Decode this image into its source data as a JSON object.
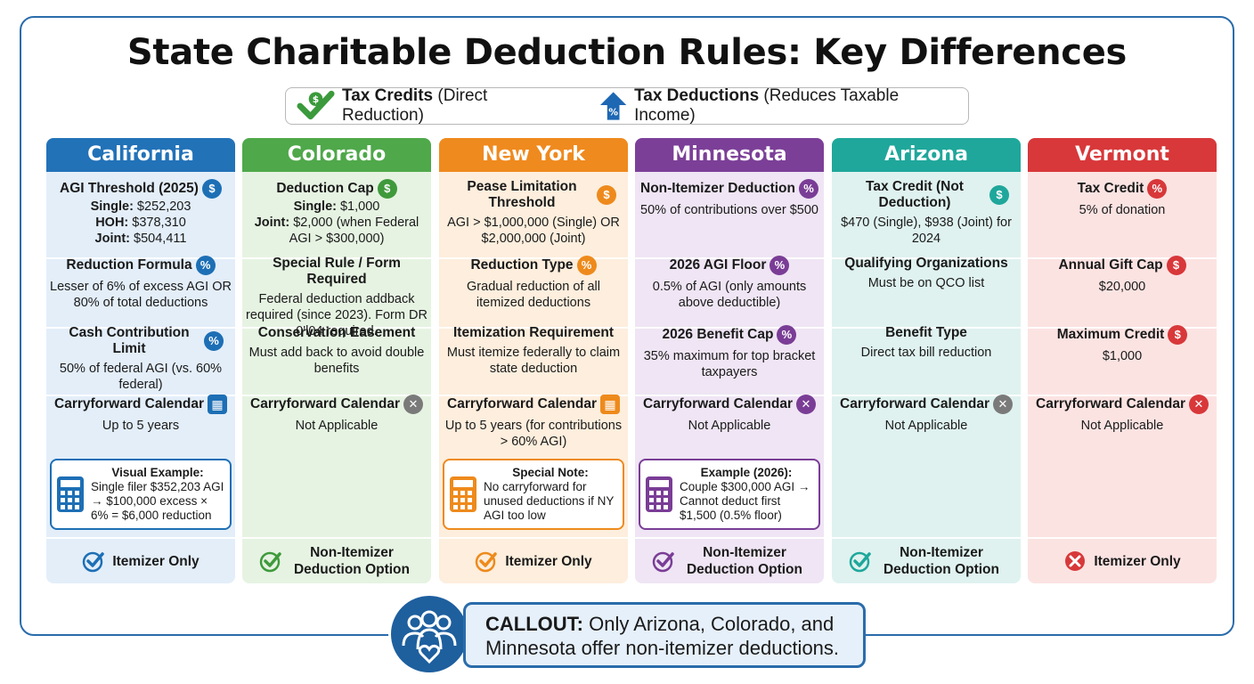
{
  "title": "State Charitable Deduction Rules: Key Differences",
  "legend": {
    "credits_bold": "Tax Credits",
    "credits_rest": "(Direct Reduction)",
    "deductions_bold": "Tax Deductions",
    "deductions_rest": "(Reduces Taxable Income)"
  },
  "columns": [
    {
      "state": "California",
      "header_color": "#2272b8",
      "bg": "#e3eef9",
      "accent": "#1d6fb5",
      "s1": {
        "head": "AGI Threshold (2025)",
        "icon": "$",
        "lines": [
          [
            "Single:",
            " $252,203"
          ],
          [
            "HOH:",
            " $378,310"
          ],
          [
            "Joint:",
            " $504,411"
          ]
        ]
      },
      "s2": {
        "head": "Reduction Formula",
        "icon": "%",
        "text": "Lesser of 6% of excess AGI OR 80% of total deductions"
      },
      "s3": {
        "head": "Cash Contribution Limit",
        "icon": "%",
        "text": "50% of federal AGI (vs. 60% federal)"
      },
      "s4": {
        "head": "Carryforward Calendar",
        "icon": "cal",
        "text": "Up to 5 years"
      },
      "note": {
        "head": "Visual Example:",
        "text": "Single filer $352,203 AGI → $100,000 excess × 6% = $6,000 reduction"
      },
      "bottom": {
        "icon": "check",
        "text": "Itemizer Only"
      }
    },
    {
      "state": "Colorado",
      "header_color": "#4fa84a",
      "bg": "#e6f3e2",
      "accent": "#3f9a3c",
      "s1": {
        "head": "Deduction Cap",
        "icon": "$",
        "lines": [
          [
            "Single:",
            " $1,000"
          ],
          [
            "Joint:",
            " $2,000 (when Federal AGI > $300,000)"
          ]
        ]
      },
      "s2": {
        "head": "Special Rule / Form Required",
        "icon": "",
        "text": "Federal deduction addback required (since 2023). Form DR 0'l04 required."
      },
      "s3": {
        "head": "Conservation Easement",
        "icon": "",
        "text": "Must add back to avoid double benefits"
      },
      "s4": {
        "head": "Carryforward Calendar",
        "icon": "x",
        "text": "Not Applicable"
      },
      "bottom": {
        "icon": "check",
        "text": "Non-Itemizer Deduction Option"
      }
    },
    {
      "state": "New York",
      "header_color": "#ef8a1e",
      "bg": "#fdeedd",
      "accent": "#ee8a1c",
      "s1": {
        "head": "Pease Limitation Threshold",
        "icon": "$",
        "text": "AGI > $1,000,000 (Single) OR $2,000,000 (Joint)"
      },
      "s2": {
        "head": "Reduction Type",
        "icon": "%",
        "text": "Gradual reduction of all itemized deductions"
      },
      "s3": {
        "head": "Itemization Requirement",
        "icon": "",
        "text": "Must itemize federally to claim state deduction"
      },
      "s4": {
        "head": "Carryforward Calendar",
        "icon": "cal",
        "text": "Up to 5 years (for contributions > 60% AGI)"
      },
      "note": {
        "head": "Special Note:",
        "text": "No carryforward for unused deductions if NY AGI too low"
      },
      "bottom": {
        "icon": "check",
        "text": "Itemizer Only"
      }
    },
    {
      "state": "Minnesota",
      "header_color": "#7c3f98",
      "bg": "#efe5f4",
      "accent": "#7a3d96",
      "s1": {
        "head": "Non-Itemizer Deduction",
        "icon": "%",
        "text": "50% of contributions over $500"
      },
      "s2": {
        "head": "2026 AGI Floor",
        "icon": "%",
        "text": "0.5% of AGI (only amounts above deductible)"
      },
      "s3": {
        "head": "2026 Benefit Cap",
        "icon": "%",
        "text": "35% maximum for top bracket taxpayers"
      },
      "s4": {
        "head": "Carryforward Calendar",
        "icon": "x",
        "text": "Not Applicable"
      },
      "note": {
        "head": "Example (2026):",
        "text": "Couple $300,000 AGI → Cannot deduct first $1,500 (0.5% floor)"
      },
      "bottom": {
        "icon": "check",
        "text": "Non-Itemizer Deduction Option"
      }
    },
    {
      "state": "Arizona",
      "header_color": "#1fa79b",
      "bg": "#dff2ef",
      "accent": "#1fa79b",
      "s1": {
        "head": "Tax Credit (Not Deduction)",
        "icon": "$",
        "text": "$470 (Single), $938 (Joint) for 2024"
      },
      "s2": {
        "head": "Qualifying Organizations",
        "icon": "",
        "text": "Must be on QCO list"
      },
      "s3": {
        "head": "Benefit Type",
        "icon": "",
        "text": "Direct tax bill reduction"
      },
      "s4": {
        "head": "Carryforward Calendar",
        "icon": "x",
        "text": "Not Applicable"
      },
      "bottom": {
        "icon": "check",
        "text": "Non-Itemizer Deduction Option"
      }
    },
    {
      "state": "Vermont",
      "header_color": "#d8383a",
      "bg": "#fbe3e2",
      "accent": "#d8383a",
      "s1": {
        "head": "Tax Credit",
        "icon": "%",
        "text": "5% of donation"
      },
      "s2": {
        "head": "Annual Gift Cap",
        "icon": "$",
        "text": "$20,000"
      },
      "s3": {
        "head": "Maximum Credit",
        "icon": "$",
        "text": "$1,000"
      },
      "s4": {
        "head": "Carryforward Calendar",
        "icon": "x",
        "text": "Not Applicable"
      },
      "bottom": {
        "icon": "x",
        "text": "Itemizer Only"
      }
    }
  ],
  "callout": {
    "bold": "CALLOUT:",
    "text": " Only Arizona, Colorado, and Minnesota offer non-itemizer deductions."
  }
}
